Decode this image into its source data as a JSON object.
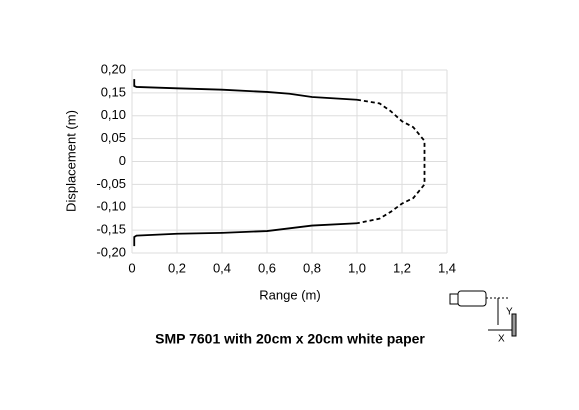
{
  "chart_data": {
    "type": "line",
    "title": "SMP 7601 with 20cm x 20cm white paper",
    "x_label": "Range (m)",
    "y_label": "Displacement (m)",
    "xlim": [
      0,
      1.4
    ],
    "ylim": [
      -0.2,
      0.2
    ],
    "xticks": [
      0,
      {
        "value": 0.2,
        "label": "0,2"
      },
      {
        "value": 0.4,
        "label": "0,4"
      },
      {
        "value": 0.6,
        "label": "0,6"
      },
      {
        "value": 0.8,
        "label": "0,8"
      },
      {
        "value": 1.0,
        "label": "1,0"
      },
      {
        "value": 1.2,
        "label": "1,2"
      },
      {
        "value": 1.4,
        "label": "1,4"
      }
    ],
    "yticks": [
      {
        "value": -0.2,
        "label": "-0,20"
      },
      {
        "value": -0.15,
        "label": "-0,15"
      },
      {
        "value": -0.1,
        "label": "-0,10"
      },
      {
        "value": -0.05,
        "label": "-0,05"
      },
      0,
      {
        "value": 0.05,
        "label": "0,05"
      },
      {
        "value": 0.1,
        "label": "0,10"
      },
      {
        "value": 0.15,
        "label": "0,15"
      },
      {
        "value": 0.2,
        "label": "0,20"
      }
    ],
    "grid": true,
    "series": [
      {
        "color": "#000000",
        "style": "solid",
        "x": [
          0.01,
          0.01,
          0.02,
          0.2,
          0.4,
          0.6,
          0.7,
          0.8,
          1.0
        ],
        "values": [
          0.18,
          0.165,
          0.163,
          0.16,
          0.157,
          0.152,
          0.148,
          0.141,
          0.135
        ]
      },
      {
        "color": "#000000",
        "style": "dashed",
        "x": [
          1.0,
          1.1,
          1.15,
          1.2,
          1.25,
          1.3,
          1.3,
          1.3,
          1.25,
          1.2,
          1.15,
          1.1,
          1.0
        ],
        "values": [
          0.135,
          0.127,
          0.11,
          0.088,
          0.075,
          0.045,
          0,
          -0.05,
          -0.08,
          -0.092,
          -0.11,
          -0.125,
          -0.135
        ]
      },
      {
        "color": "#000000",
        "style": "solid",
        "x": [
          1.0,
          0.8,
          0.6,
          0.4,
          0.2,
          0.02,
          0.01,
          0.01
        ],
        "values": [
          -0.135,
          -0.14,
          -0.152,
          -0.156,
          -0.158,
          -0.162,
          -0.165,
          -0.185
        ]
      }
    ]
  },
  "sensor_diagram": {
    "y_label": "Y",
    "x_label": "X"
  }
}
